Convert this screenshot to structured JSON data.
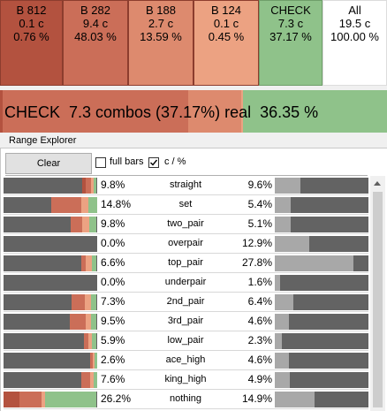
{
  "actions": [
    {
      "name": "B 812",
      "combos": "0.1 c",
      "percent": "0.76 %",
      "color": "#b3523f"
    },
    {
      "name": "B 282",
      "combos": "9.4 c",
      "percent": "48.03 %",
      "color": "#cb6e58"
    },
    {
      "name": "B 188",
      "combos": "2.7 c",
      "percent": "13.59 %",
      "color": "#dd8a6e"
    },
    {
      "name": "B 124",
      "combos": "0.1 c",
      "percent": "0.45 %",
      "color": "#eca282"
    },
    {
      "name": "CHECK",
      "combos": "7.3 c",
      "percent": "37.17 %",
      "color": "#8fc28a"
    },
    {
      "name": "All",
      "combos": "19.5 c",
      "percent": "100.00 %",
      "color": "#ffffff"
    }
  ],
  "summary": {
    "text": "CHECK  7.3 combos (37.17%) real  36.35 %",
    "segments": [
      {
        "color": "#b3523f",
        "fraction": 0.0076
      },
      {
        "color": "#cb6e58",
        "fraction": 0.4803
      },
      {
        "color": "#dd8a6e",
        "fraction": 0.1359
      },
      {
        "color": "#eca282",
        "fraction": 0.0045
      }
    ]
  },
  "range_explorer": {
    "title": "Range Explorer",
    "clear_label": "Clear",
    "full_bars_label": "full bars",
    "full_bars_checked": false,
    "cpct_label": "c / %",
    "cpct_checked": true,
    "rows": [
      {
        "category": "straight",
        "left_value": "9.8%",
        "right_value": "9.6%",
        "right_fill": 0.27,
        "mix": [
          0.04,
          0.06,
          0.03,
          0.03
        ]
      },
      {
        "category": "set",
        "left_value": "14.8%",
        "right_value": "5.4%",
        "right_fill": 0.17,
        "mix": [
          0.0,
          0.32,
          0.08,
          0.09
        ]
      },
      {
        "category": "two_pair",
        "left_value": "9.8%",
        "right_value": "5.1%",
        "right_fill": 0.17,
        "mix": [
          0.0,
          0.12,
          0.08,
          0.08
        ]
      },
      {
        "category": "overpair",
        "left_value": "0.0%",
        "right_value": "12.9%",
        "right_fill": 0.37,
        "mix": [
          0.0,
          0.0,
          0.0,
          0.0
        ]
      },
      {
        "category": "top_pair",
        "left_value": "6.6%",
        "right_value": "27.8%",
        "right_fill": 0.84,
        "mix": [
          0.0,
          0.05,
          0.07,
          0.05
        ]
      },
      {
        "category": "underpair",
        "left_value": "0.0%",
        "right_value": "1.6%",
        "right_fill": 0.06,
        "mix": [
          0.0,
          0.0,
          0.0,
          0.0
        ]
      },
      {
        "category": "2nd_pair",
        "left_value": "7.3%",
        "right_value": "6.4%",
        "right_fill": 0.2,
        "mix": [
          0.0,
          0.14,
          0.07,
          0.06
        ]
      },
      {
        "category": "3rd_pair",
        "left_value": "9.5%",
        "right_value": "4.6%",
        "right_fill": 0.15,
        "mix": [
          0.0,
          0.17,
          0.06,
          0.06
        ]
      },
      {
        "category": "low_pair",
        "left_value": "5.9%",
        "right_value": "2.3%",
        "right_fill": 0.08,
        "mix": [
          0.0,
          0.05,
          0.04,
          0.05
        ]
      },
      {
        "category": "ace_high",
        "left_value": "2.6%",
        "right_value": "4.6%",
        "right_fill": 0.15,
        "mix": [
          0.0,
          0.03,
          0.02,
          0.03
        ]
      },
      {
        "category": "king_high",
        "left_value": "7.6%",
        "right_value": "4.9%",
        "right_fill": 0.16,
        "mix": [
          0.0,
          0.09,
          0.04,
          0.04
        ]
      },
      {
        "category": "nothing",
        "left_value": "26.2%",
        "right_value": "14.9%",
        "right_fill": 0.42,
        "mix": [
          0.17,
          0.24,
          0.04,
          0.55
        ]
      }
    ]
  },
  "colors": {
    "bar_bg": "#636363",
    "right_fill": "#a8a8a8",
    "check": "#8fc28a"
  }
}
